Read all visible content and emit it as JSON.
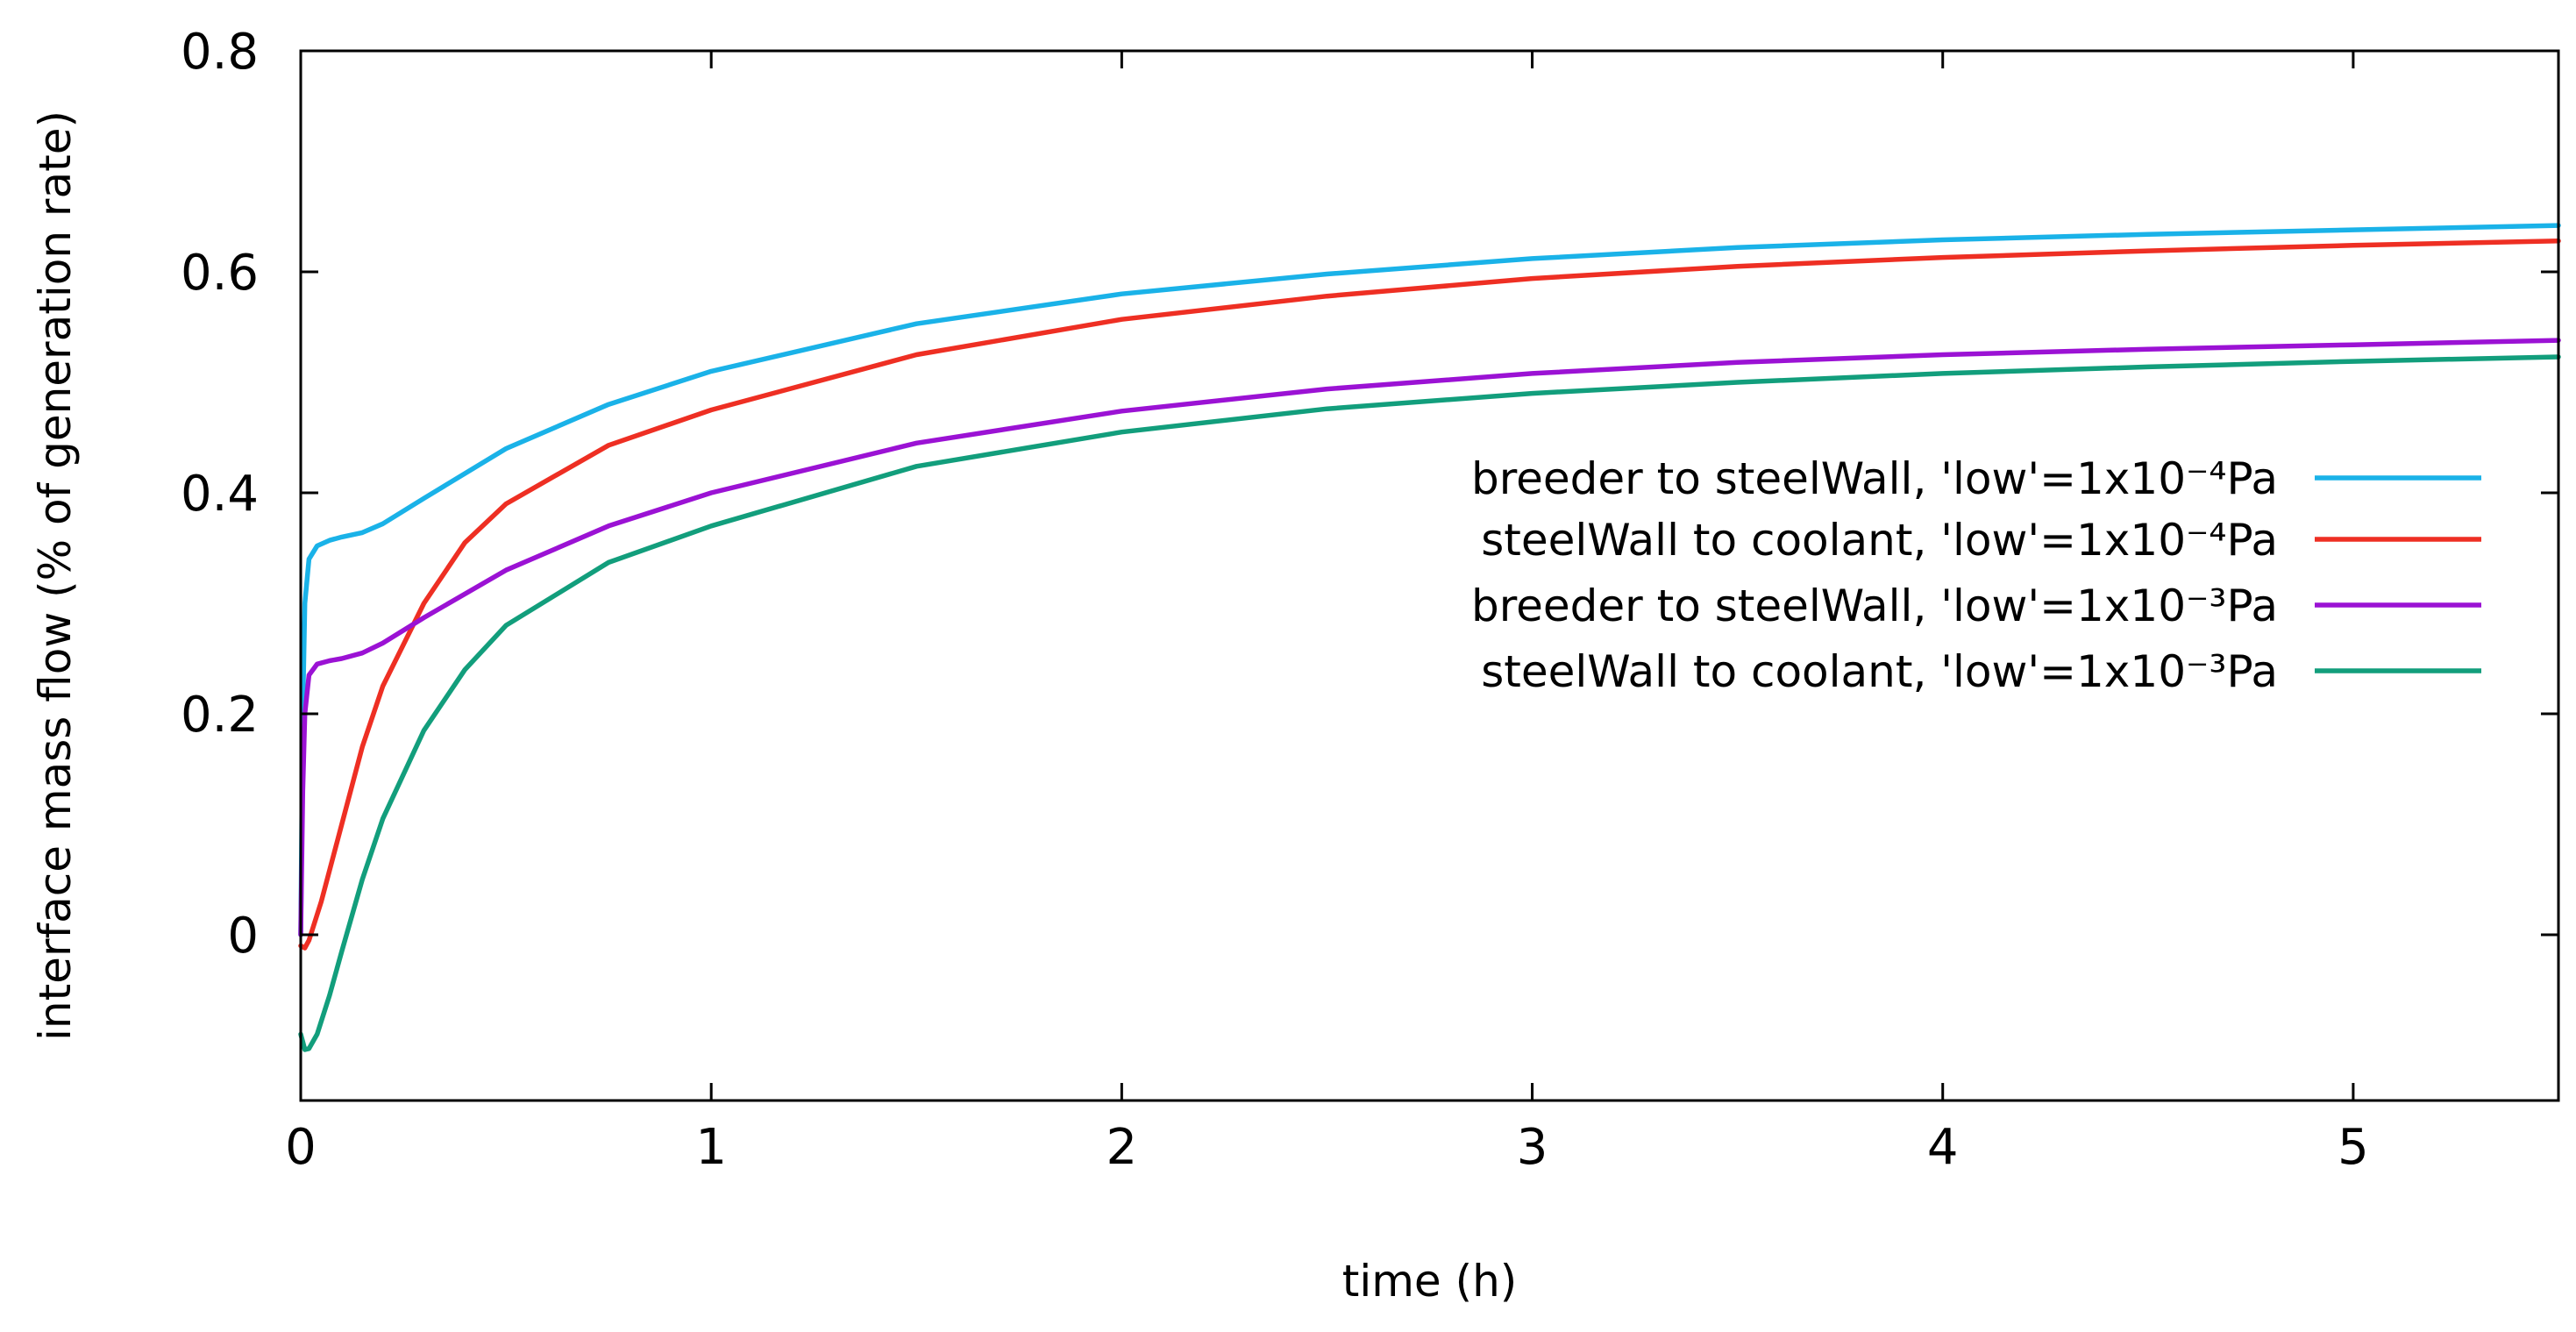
{
  "chart_data": {
    "type": "line",
    "title": "",
    "xlabel": "time (h)",
    "ylabel": "interface mass flow (% of generation rate)",
    "xlim": [
      0,
      5.5
    ],
    "ylim": [
      -0.15,
      0.8
    ],
    "xticks": [
      0,
      1,
      2,
      3,
      4,
      5
    ],
    "xtick_labels": [
      "0",
      "1",
      "2",
      "3",
      "4",
      "5"
    ],
    "yticks": [
      0,
      0.2,
      0.4,
      0.6,
      0.8
    ],
    "ytick_labels": [
      "0",
      "0.2",
      "0.4",
      "0.6",
      "0.8"
    ],
    "grid": false,
    "legend_position": "right",
    "series": [
      {
        "name": "breeder to steelWall, 'low'=1x10⁻⁴Pa",
        "color": "#1ab2e8",
        "x": [
          0,
          0.005,
          0.01,
          0.02,
          0.04,
          0.07,
          0.1,
          0.15,
          0.2,
          0.3,
          0.5,
          0.75,
          1.0,
          1.5,
          2.0,
          2.5,
          3.0,
          3.5,
          4.0,
          4.5,
          5.0,
          5.5
        ],
        "y": [
          0.0,
          0.2,
          0.3,
          0.34,
          0.352,
          0.357,
          0.36,
          0.364,
          0.372,
          0.395,
          0.44,
          0.48,
          0.51,
          0.553,
          0.58,
          0.598,
          0.612,
          0.622,
          0.629,
          0.634,
          0.638,
          0.642
        ]
      },
      {
        "name": "steelWall to coolant, 'low'=1x10⁻⁴Pa",
        "color": "#ee2f23",
        "x": [
          0,
          0.01,
          0.02,
          0.05,
          0.1,
          0.15,
          0.2,
          0.3,
          0.4,
          0.5,
          0.75,
          1.0,
          1.5,
          2.0,
          2.5,
          3.0,
          3.5,
          4.0,
          4.5,
          5.0,
          5.5
        ],
        "y": [
          -0.01,
          -0.012,
          -0.005,
          0.03,
          0.1,
          0.17,
          0.225,
          0.3,
          0.355,
          0.39,
          0.443,
          0.475,
          0.525,
          0.557,
          0.578,
          0.594,
          0.605,
          0.613,
          0.619,
          0.624,
          0.628
        ]
      },
      {
        "name": "breeder to steelWall, 'low'=1x10⁻³Pa",
        "color": "#9b12d4",
        "x": [
          0,
          0.005,
          0.01,
          0.02,
          0.04,
          0.07,
          0.1,
          0.15,
          0.2,
          0.3,
          0.5,
          0.75,
          1.0,
          1.5,
          2.0,
          2.5,
          3.0,
          3.5,
          4.0,
          4.5,
          5.0,
          5.5
        ],
        "y": [
          0.0,
          0.13,
          0.2,
          0.235,
          0.245,
          0.248,
          0.25,
          0.255,
          0.264,
          0.287,
          0.33,
          0.37,
          0.4,
          0.445,
          0.474,
          0.494,
          0.508,
          0.518,
          0.525,
          0.53,
          0.534,
          0.538
        ]
      },
      {
        "name": "steelWall to coolant, 'low'=1x10⁻³Pa",
        "color": "#129e7c",
        "x": [
          0,
          0.01,
          0.02,
          0.04,
          0.07,
          0.1,
          0.15,
          0.2,
          0.3,
          0.4,
          0.5,
          0.75,
          1.0,
          1.5,
          2.0,
          2.5,
          3.0,
          3.5,
          4.0,
          4.5,
          5.0,
          5.5
        ],
        "y": [
          -0.09,
          -0.104,
          -0.103,
          -0.09,
          -0.055,
          -0.015,
          0.05,
          0.105,
          0.185,
          0.24,
          0.28,
          0.337,
          0.37,
          0.424,
          0.455,
          0.476,
          0.49,
          0.5,
          0.508,
          0.514,
          0.519,
          0.523
        ]
      }
    ]
  }
}
